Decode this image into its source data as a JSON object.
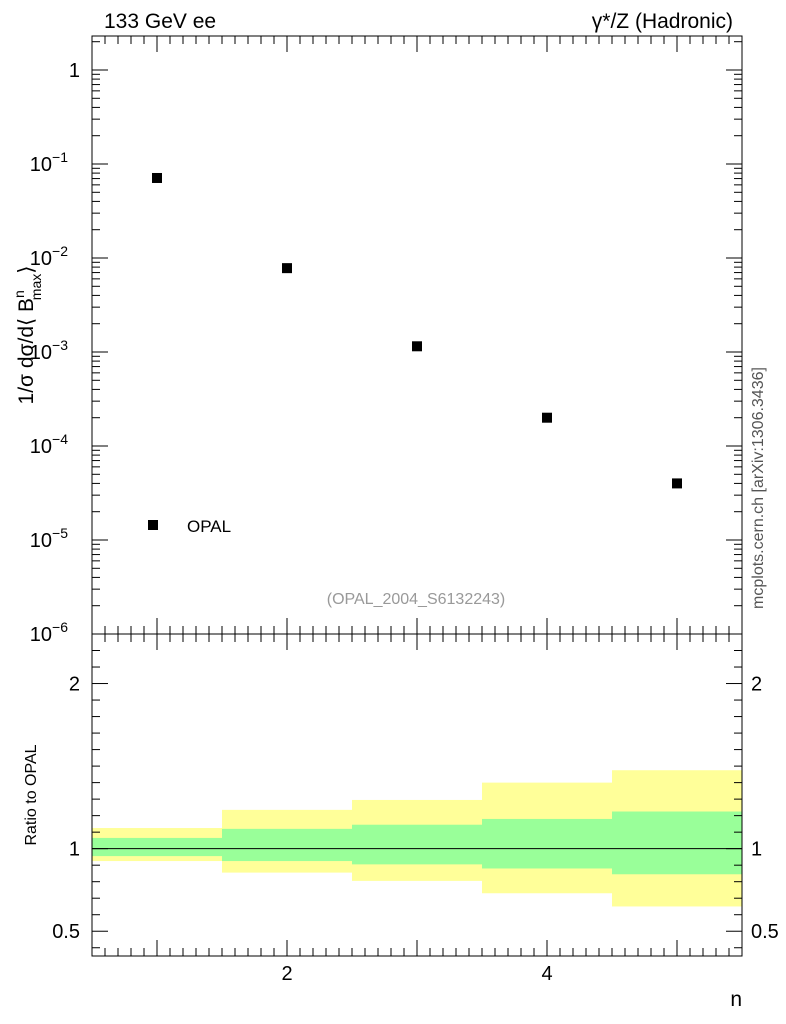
{
  "header": {
    "left_title": "133 GeV ee",
    "right_title_gamma": "γ",
    "right_title_rest": "*/Z (Hadronic)"
  },
  "side_text": "mcplots.cern.ch [arXiv:1306.3436]",
  "analysis_id": "(OPAL_2004_S6132243)",
  "legend": {
    "label": "OPAL"
  },
  "chart_data": [
    {
      "type": "scatter",
      "title": "133 GeV ee — γ*/Z (Hadronic)",
      "ylabel_parts": {
        "prefix": "1/σ dσ/d⟨ B",
        "sup": "n",
        "sub": "max",
        "suffix": "⟩"
      },
      "xlabel": "n",
      "yscale": "log",
      "ylim": [
        1e-06,
        2.3
      ],
      "xlim": [
        0.5,
        5.5
      ],
      "ytick_labels": [
        {
          "value": 1,
          "base": "1",
          "exp": ""
        },
        {
          "value": 0.1,
          "base": "10",
          "exp": "−1"
        },
        {
          "value": 0.01,
          "base": "10",
          "exp": "−2"
        },
        {
          "value": 0.001,
          "base": "10",
          "exp": "−3"
        },
        {
          "value": 0.0001,
          "base": "10",
          "exp": "−4"
        },
        {
          "value": 1e-05,
          "base": "10",
          "exp": "−5"
        },
        {
          "value": 1e-06,
          "base": "10",
          "exp": "−6"
        }
      ],
      "series": [
        {
          "name": "OPAL",
          "x": [
            1,
            2,
            3,
            4,
            5
          ],
          "y": [
            0.071,
            0.0078,
            0.00115,
            0.0002,
            4e-05
          ]
        }
      ]
    },
    {
      "type": "area",
      "ylabel": "Ratio to OPAL",
      "xlabel": "n",
      "ylim": [
        0.35,
        2.3
      ],
      "xlim": [
        0.5,
        5.5
      ],
      "yticks": [
        0.5,
        1,
        2
      ],
      "ytick_labels": [
        "0.5",
        "1",
        "2"
      ],
      "xticks": [
        2,
        4
      ],
      "xtick_labels": [
        "2",
        "4"
      ],
      "reference_line": 1,
      "bins": [
        {
          "x_low": 0.5,
          "x_high": 1.5,
          "green": [
            0.955,
            1.065
          ],
          "yellow": [
            0.925,
            1.125
          ]
        },
        {
          "x_low": 1.5,
          "x_high": 2.5,
          "green": [
            0.925,
            1.12
          ],
          "yellow": [
            0.855,
            1.235
          ]
        },
        {
          "x_low": 2.5,
          "x_high": 3.5,
          "green": [
            0.905,
            1.145
          ],
          "yellow": [
            0.805,
            1.295
          ]
        },
        {
          "x_low": 3.5,
          "x_high": 4.5,
          "green": [
            0.88,
            1.18
          ],
          "yellow": [
            0.73,
            1.4
          ]
        },
        {
          "x_low": 4.5,
          "x_high": 5.5,
          "green": [
            0.845,
            1.225
          ],
          "yellow": [
            0.65,
            1.475
          ]
        }
      ],
      "colors": {
        "green": "#99ff99",
        "yellow": "#ffff99"
      }
    }
  ]
}
